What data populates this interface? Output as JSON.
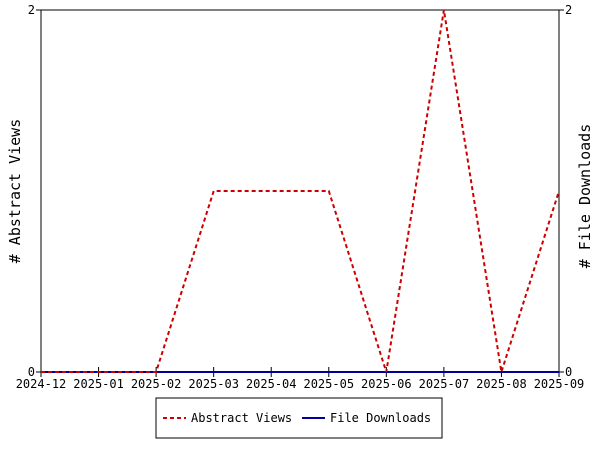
{
  "chart_data": {
    "type": "line",
    "x": [
      "2024-12",
      "2025-01",
      "2025-02",
      "2025-03",
      "2025-04",
      "2025-05",
      "2025-06",
      "2025-07",
      "2025-08",
      "2025-09"
    ],
    "series": [
      {
        "name": "Abstract Views",
        "axis": "left",
        "color": "#cc0000",
        "dash": true,
        "values": [
          0,
          0,
          0,
          1,
          1,
          1,
          0,
          2,
          0,
          1
        ]
      },
      {
        "name": "File Downloads",
        "axis": "right",
        "color": "#000099",
        "dash": false,
        "values": [
          0,
          0,
          0,
          0,
          0,
          0,
          0,
          0,
          0,
          0
        ]
      }
    ],
    "ylabel": "# Abstract Views",
    "y2label": "# File Downloads",
    "ylim": [
      0,
      2
    ],
    "y2lim": [
      0,
      2
    ],
    "y_ticks": [
      "0",
      "2"
    ],
    "y2_ticks": [
      "0",
      "2"
    ],
    "grid": false,
    "legend_position": "bottom"
  }
}
